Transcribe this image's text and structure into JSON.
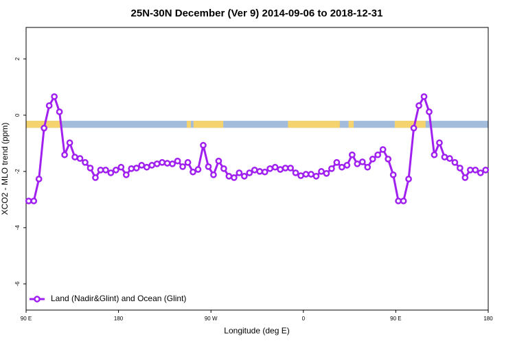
{
  "chart_data": {
    "type": "line",
    "title": "25N-30N December (Ver 9)   2014-09-06 to 2018-12-31",
    "x_label": "Longitude (deg E)",
    "y_label": "XCO2 - MLO trend (ppm)",
    "xlim": [
      90,
      540
    ],
    "xticks": [
      {
        "value": 90,
        "label": "90 E"
      },
      {
        "value": 180,
        "label": "180"
      },
      {
        "value": 270,
        "label": "90 W"
      },
      {
        "value": 360,
        "label": "0"
      },
      {
        "value": 450,
        "label": "90 E"
      },
      {
        "value": 540,
        "label": "180"
      }
    ],
    "ylim": [
      -6.93,
      3.12
    ],
    "yticks": [
      -6,
      -4,
      -2,
      0,
      2
    ],
    "legend": "bottomleft",
    "land_ocean_band": {
      "ylim": [
        -0.45,
        -0.2
      ],
      "ocean_color": "#a4bcdc",
      "land_color": "#f5d36e",
      "land_segments": [
        [
          90,
          124.8
        ],
        [
          246.5,
          250.5
        ],
        [
          253,
          282
        ],
        [
          345,
          395.5
        ],
        [
          404,
          409
        ],
        [
          449,
          479
        ]
      ]
    },
    "x": [
      92.5,
      97.5,
      102.5,
      107.5,
      112.5,
      117.5,
      122.5,
      127.5,
      132.5,
      137.5,
      142.5,
      147.5,
      152.5,
      157.5,
      162.5,
      167.5,
      172.5,
      177.5,
      182.5,
      187.5,
      192.5,
      197.5,
      202.5,
      207.5,
      212.5,
      217.5,
      222.5,
      227.5,
      232.5,
      237.5,
      242.5,
      247.5,
      252.5,
      257.5,
      262.5,
      267.5,
      272.5,
      277.5,
      282.5,
      287.5,
      292.5,
      297.5,
      302.5,
      307.5,
      312.5,
      317.5,
      322.5,
      327.5,
      332.5,
      337.5,
      342.5,
      347.5,
      352.5,
      357.5,
      362.5,
      367.5,
      372.5,
      377.5,
      382.5,
      387.5,
      392.5,
      397.5,
      402.5,
      407.5,
      412.5,
      417.5,
      422.5,
      427.5,
      432.5,
      437.5,
      442.5,
      447.5,
      452.5,
      457.5,
      462.5,
      467.5,
      472.5,
      477.5,
      482.5,
      487.5,
      492.5,
      497.5,
      502.5,
      507.5,
      512.5,
      517.5,
      522.5,
      527.5,
      532.5,
      537.5
    ],
    "series": [
      {
        "name": "Land (Nadir&Glint) and Ocean (Glint)",
        "color": "#a020f0",
        "values": [
          -3.05,
          -3.05,
          -2.27,
          -0.46,
          0.34,
          0.66,
          0.12,
          -1.41,
          -0.98,
          -1.49,
          -1.54,
          -1.68,
          -1.88,
          -2.22,
          -1.95,
          -1.95,
          -2.05,
          -1.95,
          -1.85,
          -2.12,
          -1.9,
          -1.88,
          -1.78,
          -1.85,
          -1.78,
          -1.73,
          -1.68,
          -1.71,
          -1.73,
          -1.63,
          -1.83,
          -1.68,
          -2.02,
          -1.93,
          -1.07,
          -1.83,
          -2.12,
          -1.63,
          -1.9,
          -2.17,
          -2.22,
          -2.05,
          -2.17,
          -2.05,
          -1.95,
          -2.0,
          -2.02,
          -1.9,
          -1.85,
          -1.93,
          -1.88,
          -1.88,
          -2.05,
          -2.15,
          -2.1,
          -2.1,
          -2.17,
          -2.0,
          -2.07,
          -1.9,
          -1.68,
          -1.85,
          -1.78,
          -1.41,
          -1.73,
          -1.66,
          -1.85,
          -1.56,
          -1.41,
          -1.22,
          -1.56,
          -2.12,
          -3.05,
          -3.05,
          -2.27,
          -0.46,
          0.34,
          0.66,
          0.12,
          -1.41,
          -0.98,
          -1.49,
          -1.54,
          -1.68,
          -1.88,
          -2.22,
          -1.95,
          -1.95,
          -2.05,
          -1.95
        ]
      }
    ]
  }
}
